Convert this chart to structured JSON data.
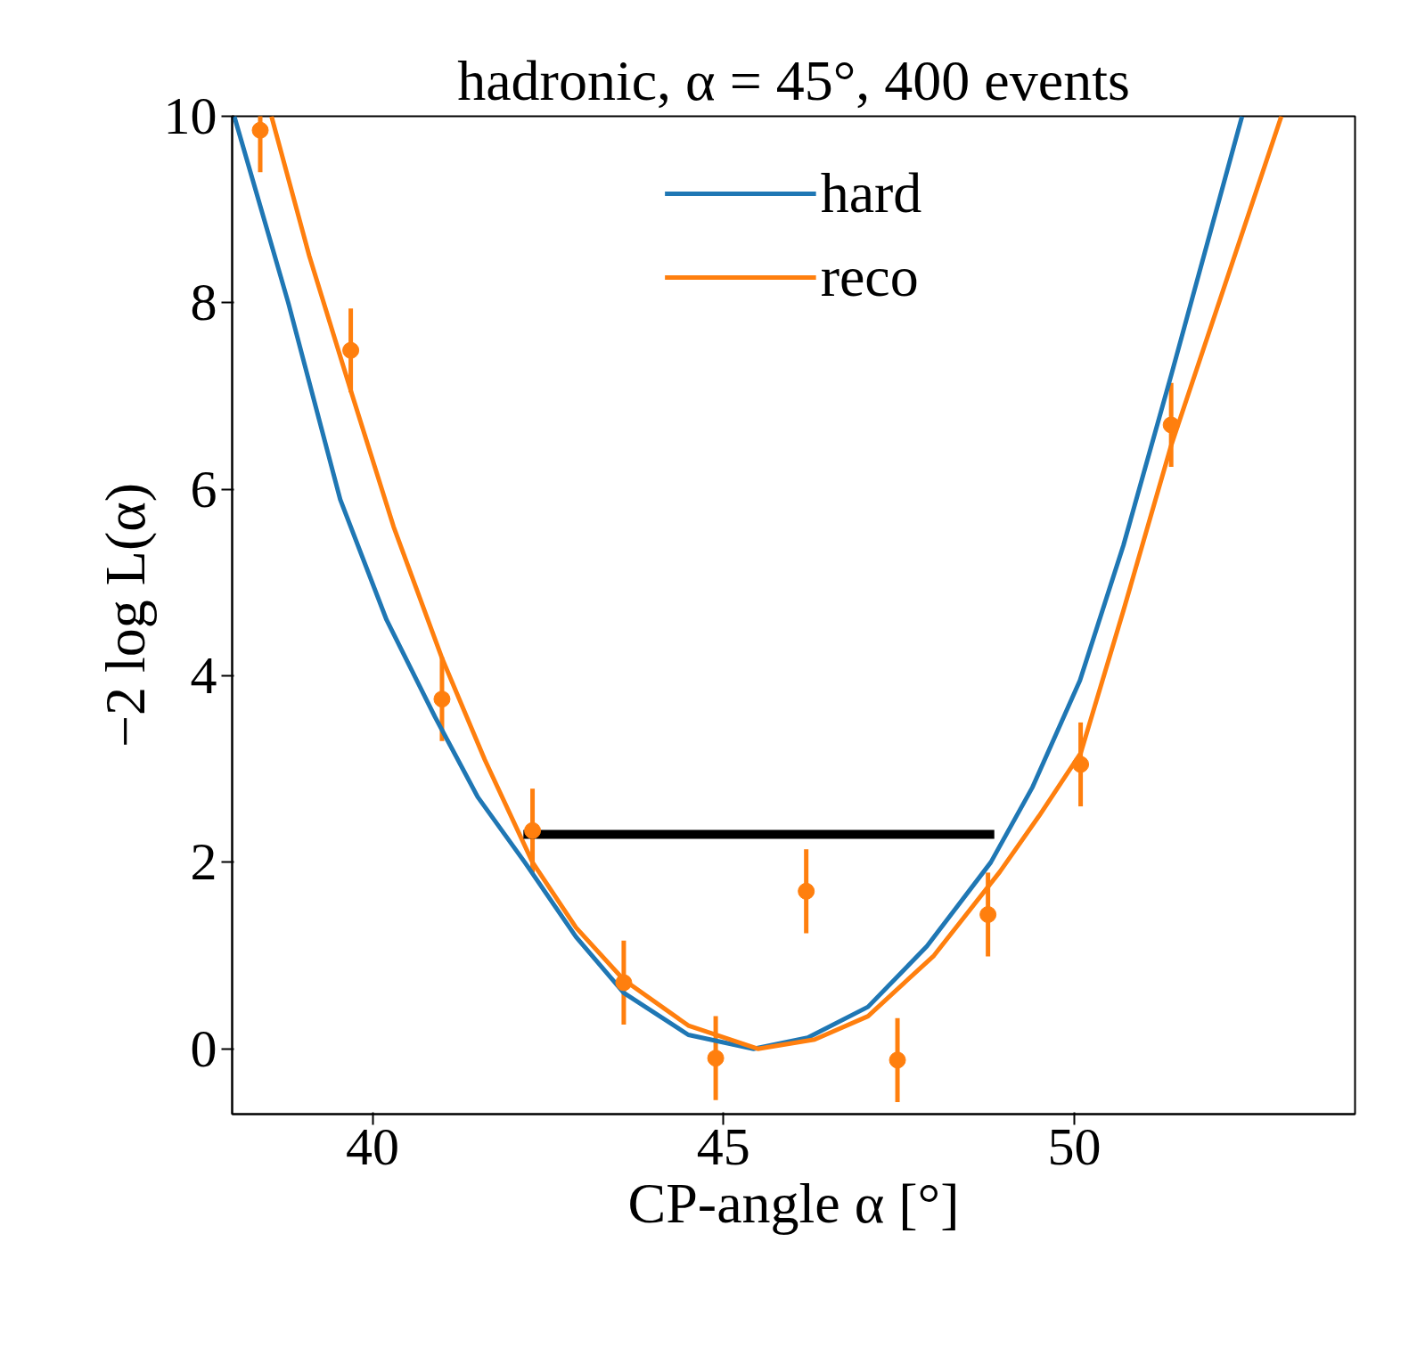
{
  "chart_data": {
    "type": "line",
    "title": "hadronic, α = 45°, 400 events",
    "xlabel": "CP-angle α [°]",
    "ylabel": "−2 log L(α)",
    "xlim": [
      38,
      54
    ],
    "ylim": [
      -0.7,
      10
    ],
    "xticks": [
      40,
      45,
      50
    ],
    "yticks": [
      0,
      2,
      4,
      6,
      8,
      10
    ],
    "grid": false,
    "legend": "top",
    "line_style": "solid",
    "series": [
      {
        "name": "hard",
        "color": "#1f77b4",
        "x": [
          38.03,
          38.8,
          39.54,
          40.2,
          40.89,
          41.5,
          42.17,
          42.9,
          43.58,
          44.5,
          45.43,
          46.2,
          47.06,
          47.9,
          48.81,
          49.4,
          50.08,
          50.7,
          51.39,
          52.39
        ],
        "values": [
          10,
          8.0,
          5.89,
          4.6,
          3.56,
          2.7,
          2.0,
          1.2,
          0.6,
          0.15,
          0,
          0.12,
          0.45,
          1.1,
          2.0,
          2.8,
          3.95,
          5.4,
          7.25,
          10
        ]
      },
      {
        "name": "reco",
        "color": "#ff7f0e",
        "x": [
          38.56,
          39.1,
          39.69,
          40.3,
          40.99,
          41.6,
          42.28,
          42.9,
          43.58,
          44.5,
          45.49,
          46.3,
          47.06,
          48.0,
          48.94,
          49.5,
          50.09,
          50.7,
          51.38,
          52.95
        ],
        "values": [
          10,
          8.5,
          7.06,
          5.6,
          4.19,
          3.1,
          2.0,
          1.3,
          0.74,
          0.25,
          0,
          0.1,
          0.35,
          1.0,
          1.9,
          2.5,
          3.17,
          4.7,
          6.47,
          10
        ]
      },
      {
        "color": "#000000",
        "x": [
          42.15,
          48.86
        ],
        "values": [
          2.3,
          2.3
        ]
      },
      {
        "color": "#ff7f0e",
        "type": "scatter",
        "marker": "circle",
        "x": [
          38.4,
          39.69,
          40.99,
          42.28,
          43.58,
          44.89,
          46.18,
          47.48,
          48.77,
          50.09,
          51.38
        ],
        "values": [
          9.85,
          7.49,
          3.75,
          2.34,
          0.71,
          -0.1,
          1.69,
          -0.12,
          1.44,
          3.05,
          6.69
        ],
        "errors": [
          0.45,
          0.45,
          0.45,
          0.45,
          0.45,
          0.45,
          0.45,
          0.45,
          0.45,
          0.45,
          0.45
        ]
      }
    ]
  }
}
